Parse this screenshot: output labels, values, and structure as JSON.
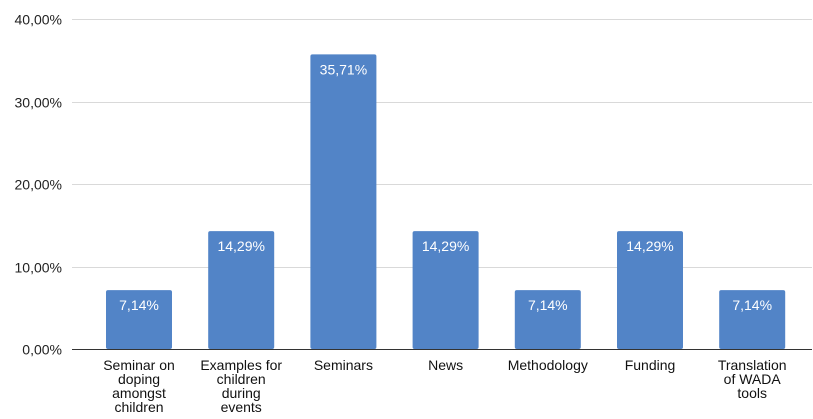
{
  "chart_data": {
    "type": "bar",
    "title": "",
    "xlabel": "",
    "ylabel": "",
    "categories": [
      "Seminar on doping amongst children",
      "Examples for children during events",
      "Seminars",
      "News",
      "Methodology",
      "Funding",
      "Translation of WADA tools"
    ],
    "category_lines": [
      [
        "Seminar on",
        "doping",
        "amongst",
        "children"
      ],
      [
        "Examples for",
        "children",
        "during",
        "events"
      ],
      [
        "Seminars"
      ],
      [
        "News"
      ],
      [
        "Methodology"
      ],
      [
        "Funding"
      ],
      [
        "Translation",
        "of WADA",
        "tools"
      ]
    ],
    "values": [
      7.14,
      14.29,
      35.71,
      14.29,
      7.14,
      14.29,
      7.14
    ],
    "value_labels": [
      "7,14%",
      "14,29%",
      "35,71%",
      "14,29%",
      "7,14%",
      "14,29%",
      "7,14%"
    ],
    "ylim": [
      0,
      40
    ],
    "yticks": [
      0,
      10,
      20,
      30,
      40
    ],
    "ytick_labels": [
      "0,00%",
      "10,00%",
      "20,00%",
      "30,00%",
      "40,00%"
    ],
    "grid": true,
    "legend": "none",
    "colors": {
      "bar": "#5284c7",
      "grid": "#d9d9d9",
      "axis": "#333333"
    }
  }
}
